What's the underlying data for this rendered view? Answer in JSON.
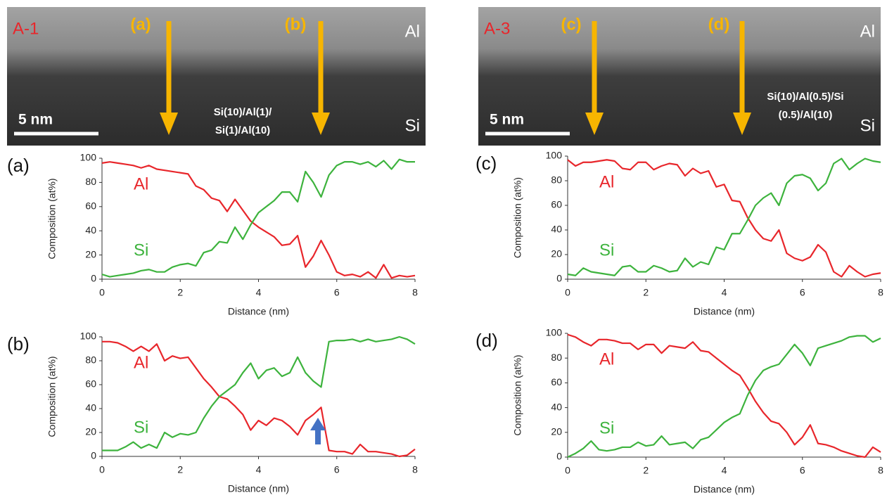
{
  "images": [
    {
      "label": "A-1",
      "markers": [
        "(a)",
        "(b)"
      ],
      "top_label": "Al",
      "bottom_label": "Si",
      "scale": "5 nm",
      "structure": [
        "Si(10)/Al(1)/",
        "Si(1)/Al(10)"
      ]
    },
    {
      "label": "A-3",
      "markers": [
        "(c)",
        "(d)"
      ],
      "top_label": "Al",
      "bottom_label": "Si",
      "scale": "5 nm",
      "structure": [
        "Si(10)/Al(0.5)/Si",
        "(0.5)/Al(10)"
      ]
    }
  ],
  "chart_data": [
    {
      "type": "line",
      "panel_label": "(a)",
      "x_label": "Distance (nm)",
      "y_label": "Composition (at%)",
      "xlim": [
        0,
        8
      ],
      "ylim": [
        0,
        100
      ],
      "xticks": [
        0,
        2,
        4,
        6,
        8
      ],
      "yticks": [
        0,
        20,
        40,
        60,
        80,
        100
      ],
      "x": [
        0,
        0.2,
        0.4,
        0.6,
        0.8,
        1,
        1.2,
        1.4,
        1.6,
        1.8,
        2,
        2.2,
        2.4,
        2.6,
        2.8,
        3,
        3.2,
        3.4,
        3.6,
        3.8,
        4,
        4.2,
        4.4,
        4.6,
        4.8,
        5,
        5.2,
        5.4,
        5.6,
        5.8,
        6,
        6.2,
        6.4,
        6.6,
        6.8,
        7,
        7.2,
        7.4,
        7.6,
        7.8,
        8
      ],
      "series": [
        {
          "name": "Al",
          "color": "#e8262b",
          "values": [
            96,
            97,
            96,
            95,
            94,
            92,
            94,
            91,
            90,
            89,
            88,
            87,
            77,
            74,
            67,
            65,
            56,
            66,
            57,
            48,
            43,
            39,
            35,
            28,
            29,
            36,
            10,
            19,
            32,
            20,
            6,
            3,
            4,
            2,
            6,
            1,
            12,
            1,
            3,
            2,
            3
          ]
        },
        {
          "name": "Si",
          "color": "#3db33d",
          "values": [
            4,
            2,
            3,
            4,
            5,
            7,
            8,
            6,
            6,
            10,
            12,
            13,
            11,
            22,
            24,
            31,
            30,
            43,
            33,
            45,
            55,
            60,
            65,
            72,
            72,
            64,
            89,
            80,
            68,
            86,
            94,
            97,
            97,
            95,
            97,
            93,
            98,
            91,
            99,
            97,
            97
          ]
        }
      ]
    },
    {
      "type": "line",
      "panel_label": "(b)",
      "x_label": "Distance (nm)",
      "y_label": "Composition (at%)",
      "xlim": [
        0,
        8
      ],
      "ylim": [
        0,
        100
      ],
      "xticks": [
        0,
        2,
        4,
        6,
        8
      ],
      "yticks": [
        0,
        20,
        40,
        60,
        80,
        100
      ],
      "x": [
        0,
        0.2,
        0.4,
        0.6,
        0.8,
        1,
        1.2,
        1.4,
        1.6,
        1.8,
        2,
        2.2,
        2.4,
        2.6,
        2.8,
        3,
        3.2,
        3.4,
        3.6,
        3.8,
        4,
        4.2,
        4.4,
        4.6,
        4.8,
        5,
        5.2,
        5.4,
        5.6,
        5.8,
        6,
        6.2,
        6.4,
        6.6,
        6.8,
        7,
        7.2,
        7.4,
        7.6,
        7.8,
        8
      ],
      "series": [
        {
          "name": "Al",
          "color": "#e8262b",
          "values": [
            96,
            96,
            95,
            92,
            88,
            92,
            88,
            94,
            80,
            84,
            82,
            83,
            74,
            65,
            58,
            50,
            48,
            42,
            35,
            22,
            30,
            26,
            32,
            30,
            25,
            18,
            30,
            35,
            41,
            5,
            4,
            4,
            2,
            10,
            4,
            4,
            3,
            2,
            0,
            1,
            6
          ]
        },
        {
          "name": "Si",
          "color": "#3db33d",
          "values": [
            5,
            5,
            5,
            8,
            12,
            7,
            10,
            7,
            20,
            16,
            19,
            18,
            20,
            32,
            42,
            50,
            55,
            60,
            70,
            78,
            65,
            72,
            74,
            67,
            70,
            83,
            70,
            63,
            58,
            96,
            97,
            97,
            98,
            96,
            98,
            96,
            97,
            98,
            100,
            98,
            94
          ]
        }
      ]
    },
    {
      "type": "line",
      "panel_label": "(c)",
      "x_label": "Distance (nm)",
      "y_label": "Composition (at%)",
      "xlim": [
        0,
        8
      ],
      "ylim": [
        0,
        100
      ],
      "xticks": [
        0,
        2,
        4,
        6,
        8
      ],
      "yticks": [
        0,
        20,
        40,
        60,
        80,
        100
      ],
      "x": [
        0,
        0.2,
        0.4,
        0.6,
        0.8,
        1,
        1.2,
        1.4,
        1.6,
        1.8,
        2,
        2.2,
        2.4,
        2.6,
        2.8,
        3,
        3.2,
        3.4,
        3.6,
        3.8,
        4,
        4.2,
        4.4,
        4.6,
        4.8,
        5,
        5.2,
        5.4,
        5.6,
        5.8,
        6,
        6.2,
        6.4,
        6.6,
        6.8,
        7,
        7.2,
        7.4,
        7.6,
        7.8,
        8
      ],
      "series": [
        {
          "name": "Al",
          "color": "#e8262b",
          "values": [
            97,
            92,
            95,
            95,
            96,
            97,
            96,
            90,
            89,
            95,
            95,
            89,
            92,
            94,
            93,
            84,
            90,
            86,
            88,
            75,
            77,
            64,
            63,
            50,
            40,
            33,
            31,
            40,
            21,
            17,
            15,
            18,
            28,
            22,
            6,
            2,
            11,
            6,
            2,
            4,
            5
          ]
        },
        {
          "name": "Si",
          "color": "#3db33d",
          "values": [
            4,
            3,
            9,
            6,
            5,
            4,
            3,
            10,
            11,
            6,
            6,
            11,
            9,
            6,
            7,
            17,
            10,
            14,
            12,
            26,
            24,
            37,
            37,
            48,
            60,
            66,
            70,
            60,
            78,
            84,
            85,
            82,
            72,
            78,
            94,
            98,
            89,
            94,
            98,
            96,
            95
          ]
        }
      ]
    },
    {
      "type": "line",
      "panel_label": "(d)",
      "x_label": "Distance (nm)",
      "y_label": "Composition (at%)",
      "xlim": [
        0,
        8
      ],
      "ylim": [
        0,
        100
      ],
      "xticks": [
        0,
        2,
        4,
        6,
        8
      ],
      "yticks": [
        0,
        20,
        40,
        60,
        80,
        100
      ],
      "x": [
        0,
        0.2,
        0.4,
        0.6,
        0.8,
        1,
        1.2,
        1.4,
        1.6,
        1.8,
        2,
        2.2,
        2.4,
        2.6,
        2.8,
        3,
        3.2,
        3.4,
        3.6,
        3.8,
        4,
        4.2,
        4.4,
        4.6,
        4.8,
        5,
        5.2,
        5.4,
        5.6,
        5.8,
        6,
        6.2,
        6.4,
        6.6,
        6.8,
        7,
        7.2,
        7.4,
        7.6,
        7.8,
        8
      ],
      "series": [
        {
          "name": "Al",
          "color": "#e8262b",
          "values": [
            99,
            97,
            93,
            90,
            95,
            95,
            94,
            92,
            92,
            87,
            91,
            91,
            84,
            90,
            89,
            88,
            93,
            86,
            85,
            80,
            75,
            70,
            66,
            56,
            45,
            36,
            29,
            27,
            20,
            10,
            16,
            26,
            11,
            10,
            8,
            5,
            3,
            1,
            0,
            8,
            4
          ]
        },
        {
          "name": "Si",
          "color": "#3db33d",
          "values": [
            0,
            3,
            7,
            13,
            6,
            5,
            6,
            8,
            8,
            12,
            9,
            10,
            17,
            10,
            11,
            12,
            7,
            14,
            16,
            22,
            28,
            32,
            35,
            50,
            62,
            70,
            73,
            75,
            83,
            91,
            84,
            74,
            88,
            90,
            92,
            94,
            97,
            98,
            98,
            93,
            96
          ]
        }
      ]
    }
  ]
}
